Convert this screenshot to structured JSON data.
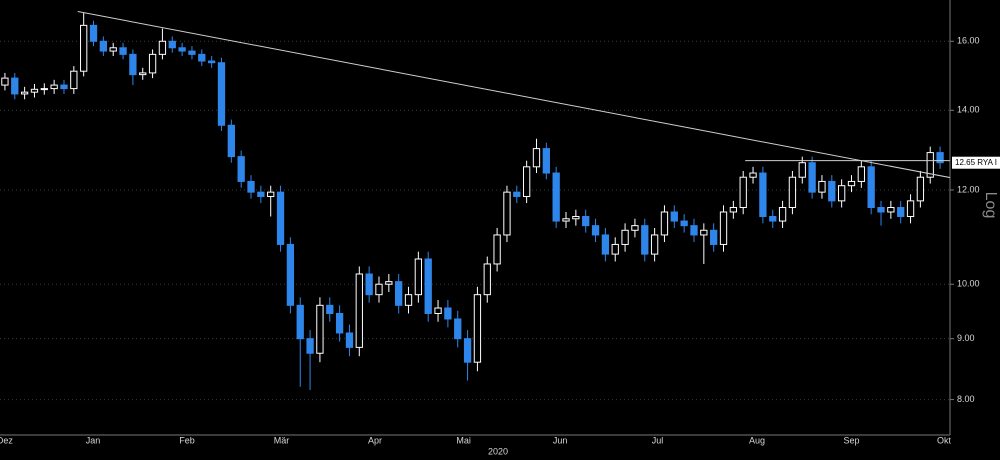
{
  "chart_data": {
    "type": "candlestick",
    "log_scale": true,
    "grid": true,
    "up_color": "#ffffff",
    "down_color": "#2f86ea",
    "axis_note": "Log",
    "year_label": "2020",
    "last_label": "12.65 RYA I",
    "ylim": [
      7.47,
      17.33
    ],
    "yticks": [
      {
        "value": 8,
        "label": "8.00"
      },
      {
        "value": 9,
        "label": "9.00"
      },
      {
        "value": 10,
        "label": "10.00"
      },
      {
        "value": 12,
        "label": "12.00"
      },
      {
        "value": 14,
        "label": "14.00"
      },
      {
        "value": 16,
        "label": "16.00"
      }
    ],
    "xlim": [
      0,
      96
    ],
    "xticks": [
      {
        "value": 0.5,
        "label": "Dez"
      },
      {
        "value": 9.45,
        "label": "Jan"
      },
      {
        "value": 19.0,
        "label": "Feb"
      },
      {
        "value": 28.6,
        "label": "Mär"
      },
      {
        "value": 38.1,
        "label": "Apr"
      },
      {
        "value": 47.1,
        "label": "Mai"
      },
      {
        "value": 56.9,
        "label": "Jun"
      },
      {
        "value": 66.8,
        "label": "Jul"
      },
      {
        "value": 76.9,
        "label": "Aug"
      },
      {
        "value": 86.5,
        "label": "Sep"
      },
      {
        "value": 95.9,
        "label": "Okt"
      }
    ],
    "trendlines": [
      {
        "x": [
          7.9,
          97
        ],
        "y": [
          16.95,
          12.27
        ]
      },
      {
        "x": [
          75.7,
          96.5
        ],
        "y": [
          12.7,
          12.7
        ]
      }
    ],
    "open": [
      14.7,
      14.9,
      14.45,
      14.5,
      14.58,
      14.6,
      14.7,
      14.6,
      15.1,
      16.5,
      16.0,
      15.7,
      15.8,
      15.6,
      15.0,
      15.05,
      15.6,
      16.0,
      15.8,
      15.7,
      15.6,
      15.4,
      15.35,
      13.6,
      12.8,
      12.2,
      11.95,
      11.85,
      11.95,
      10.8,
      9.6,
      9.0,
      8.75,
      9.6,
      9.45,
      9.1,
      8.85,
      10.2,
      9.8,
      10.0,
      10.05,
      9.6,
      9.8,
      10.5,
      9.45,
      9.55,
      9.35,
      9.0,
      8.6,
      9.8,
      10.4,
      11.0,
      11.95,
      11.85,
      12.55,
      13.0,
      12.4,
      11.3,
      11.35,
      11.4,
      11.2,
      11.0,
      10.6,
      10.8,
      11.1,
      11.2,
      10.6,
      11.0,
      11.5,
      11.3,
      11.2,
      11.0,
      11.1,
      10.8,
      11.5,
      11.6,
      12.3,
      12.4,
      11.4,
      11.3,
      11.6,
      12.3,
      12.65,
      11.95,
      12.2,
      11.75,
      12.1,
      12.2,
      12.55,
      11.6,
      11.5,
      11.6,
      11.4,
      11.75,
      12.3,
      12.9
    ],
    "high": [
      15.05,
      15.05,
      14.65,
      14.73,
      14.75,
      14.85,
      14.85,
      15.25,
      16.9,
      16.65,
      16.15,
      15.95,
      15.95,
      15.75,
      15.2,
      15.75,
      16.4,
      16.15,
      15.95,
      15.85,
      15.75,
      15.55,
      15.5,
      13.75,
      12.95,
      12.35,
      12.1,
      12.1,
      12.1,
      10.95,
      9.75,
      9.15,
      9.75,
      9.75,
      9.6,
      9.25,
      10.35,
      10.35,
      10.15,
      10.2,
      10.2,
      9.95,
      10.65,
      10.65,
      9.7,
      9.7,
      9.5,
      9.15,
      9.95,
      10.55,
      11.15,
      12.1,
      12.1,
      12.7,
      13.25,
      13.15,
      12.55,
      11.5,
      11.55,
      11.55,
      11.35,
      11.15,
      10.95,
      11.25,
      11.35,
      11.35,
      11.15,
      11.65,
      11.65,
      11.45,
      11.35,
      11.25,
      11.25,
      11.65,
      11.75,
      12.45,
      12.55,
      12.55,
      11.55,
      11.75,
      12.45,
      12.8,
      12.8,
      12.35,
      12.35,
      12.25,
      12.35,
      12.7,
      12.7,
      11.75,
      11.75,
      11.75,
      11.9,
      12.45,
      13.05,
      13.05
    ],
    "low": [
      14.55,
      14.3,
      14.3,
      14.35,
      14.43,
      14.45,
      14.45,
      14.45,
      14.95,
      15.85,
      15.55,
      15.55,
      15.45,
      14.7,
      14.85,
      14.9,
      15.45,
      15.65,
      15.55,
      15.45,
      15.25,
      15.2,
      13.45,
      12.65,
      12.05,
      11.8,
      11.7,
      11.4,
      10.65,
      9.45,
      8.2,
      8.15,
      8.6,
      9.3,
      8.95,
      8.7,
      8.7,
      9.65,
      9.65,
      9.85,
      9.45,
      9.45,
      9.65,
      9.3,
      9.3,
      9.2,
      8.85,
      8.3,
      8.45,
      9.65,
      10.25,
      10.85,
      11.7,
      11.7,
      12.4,
      12.25,
      11.15,
      11.15,
      11.2,
      11.05,
      10.85,
      10.45,
      10.45,
      10.65,
      10.95,
      10.45,
      10.45,
      10.85,
      11.15,
      11.05,
      10.85,
      10.4,
      10.65,
      10.65,
      11.35,
      11.45,
      12.15,
      11.25,
      11.15,
      11.15,
      11.45,
      12.15,
      11.8,
      11.8,
      11.6,
      11.6,
      11.95,
      12.05,
      11.45,
      11.2,
      11.35,
      11.25,
      11.25,
      11.6,
      12.15,
      12.5
    ],
    "close": [
      14.9,
      14.45,
      14.5,
      14.58,
      14.6,
      14.7,
      14.6,
      15.1,
      16.5,
      16.0,
      15.7,
      15.8,
      15.6,
      15.0,
      15.05,
      15.6,
      16.0,
      15.8,
      15.7,
      15.6,
      15.4,
      15.35,
      13.6,
      12.8,
      12.2,
      11.95,
      11.85,
      11.95,
      10.8,
      9.6,
      9.0,
      8.75,
      9.6,
      9.45,
      9.1,
      8.85,
      10.2,
      9.8,
      10.0,
      10.05,
      9.6,
      9.8,
      10.5,
      9.45,
      9.55,
      9.35,
      9.0,
      8.6,
      9.8,
      10.4,
      11.0,
      11.95,
      11.85,
      12.55,
      13.0,
      12.4,
      11.3,
      11.35,
      11.4,
      11.2,
      11.0,
      10.6,
      10.8,
      11.1,
      11.2,
      10.6,
      11.0,
      11.5,
      11.3,
      11.2,
      11.0,
      11.1,
      10.8,
      11.5,
      11.6,
      12.3,
      12.4,
      11.4,
      11.3,
      11.6,
      12.3,
      12.65,
      11.95,
      12.2,
      11.75,
      12.1,
      12.2,
      12.55,
      11.6,
      11.5,
      11.6,
      11.4,
      11.75,
      12.3,
      12.9,
      12.65
    ]
  }
}
